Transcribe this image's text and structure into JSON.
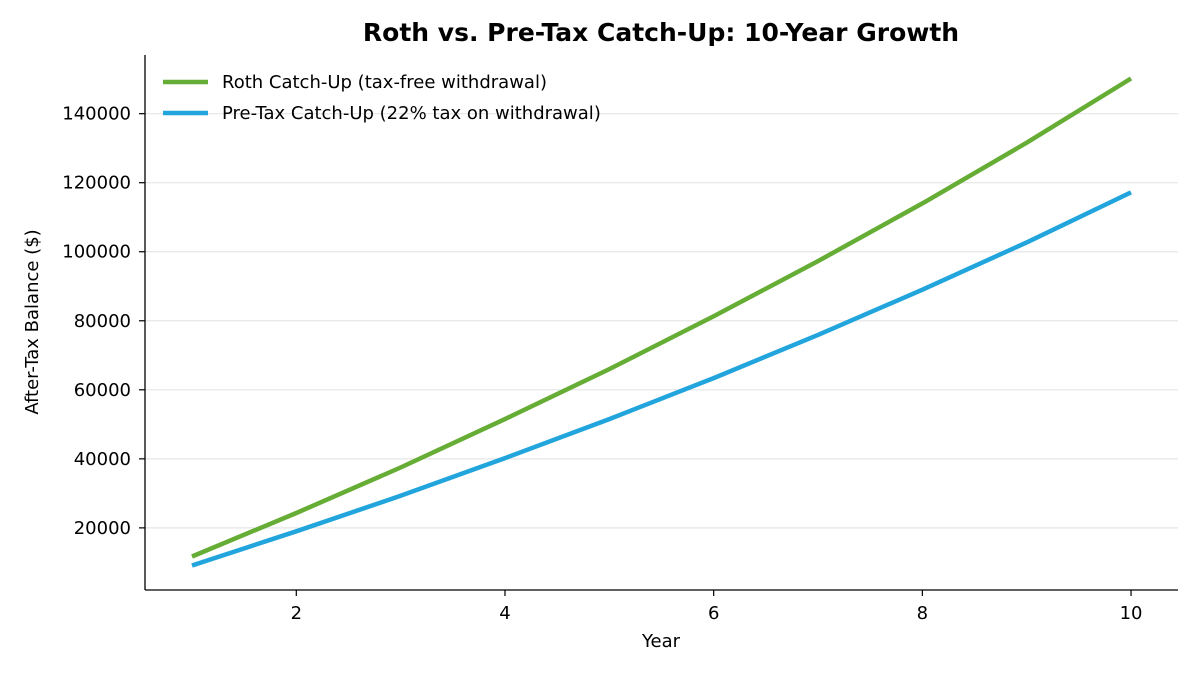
{
  "chart_data": {
    "type": "line",
    "title": "Roth vs. Pre-Tax Catch-Up: 10-Year Growth",
    "xlabel": "Year",
    "ylabel": "After-Tax Balance ($)",
    "x": [
      1,
      2,
      3,
      4,
      5,
      6,
      7,
      8,
      9,
      10
    ],
    "xlim": [
      0.55,
      10.45
    ],
    "ylim": [
      2000,
      157000
    ],
    "xticks": [
      2,
      4,
      6,
      8,
      10
    ],
    "yticks": [
      20000,
      40000,
      60000,
      80000,
      100000,
      120000,
      140000
    ],
    "grid": "horizontal",
    "legend_position": "top-left",
    "series": [
      {
        "name": "Roth Catch-Up (tax-free withdrawal)",
        "color": "#66ad36",
        "values": [
          11700,
          24300,
          37500,
          51500,
          66000,
          81300,
          97300,
          114000,
          131600,
          150200
        ]
      },
      {
        "name": "Pre-Tax Catch-Up (22% tax on withdrawal)",
        "color": "#22a5dc",
        "values": [
          9100,
          19000,
          29300,
          40200,
          51500,
          63400,
          75900,
          89000,
          102700,
          117200
        ]
      }
    ]
  }
}
